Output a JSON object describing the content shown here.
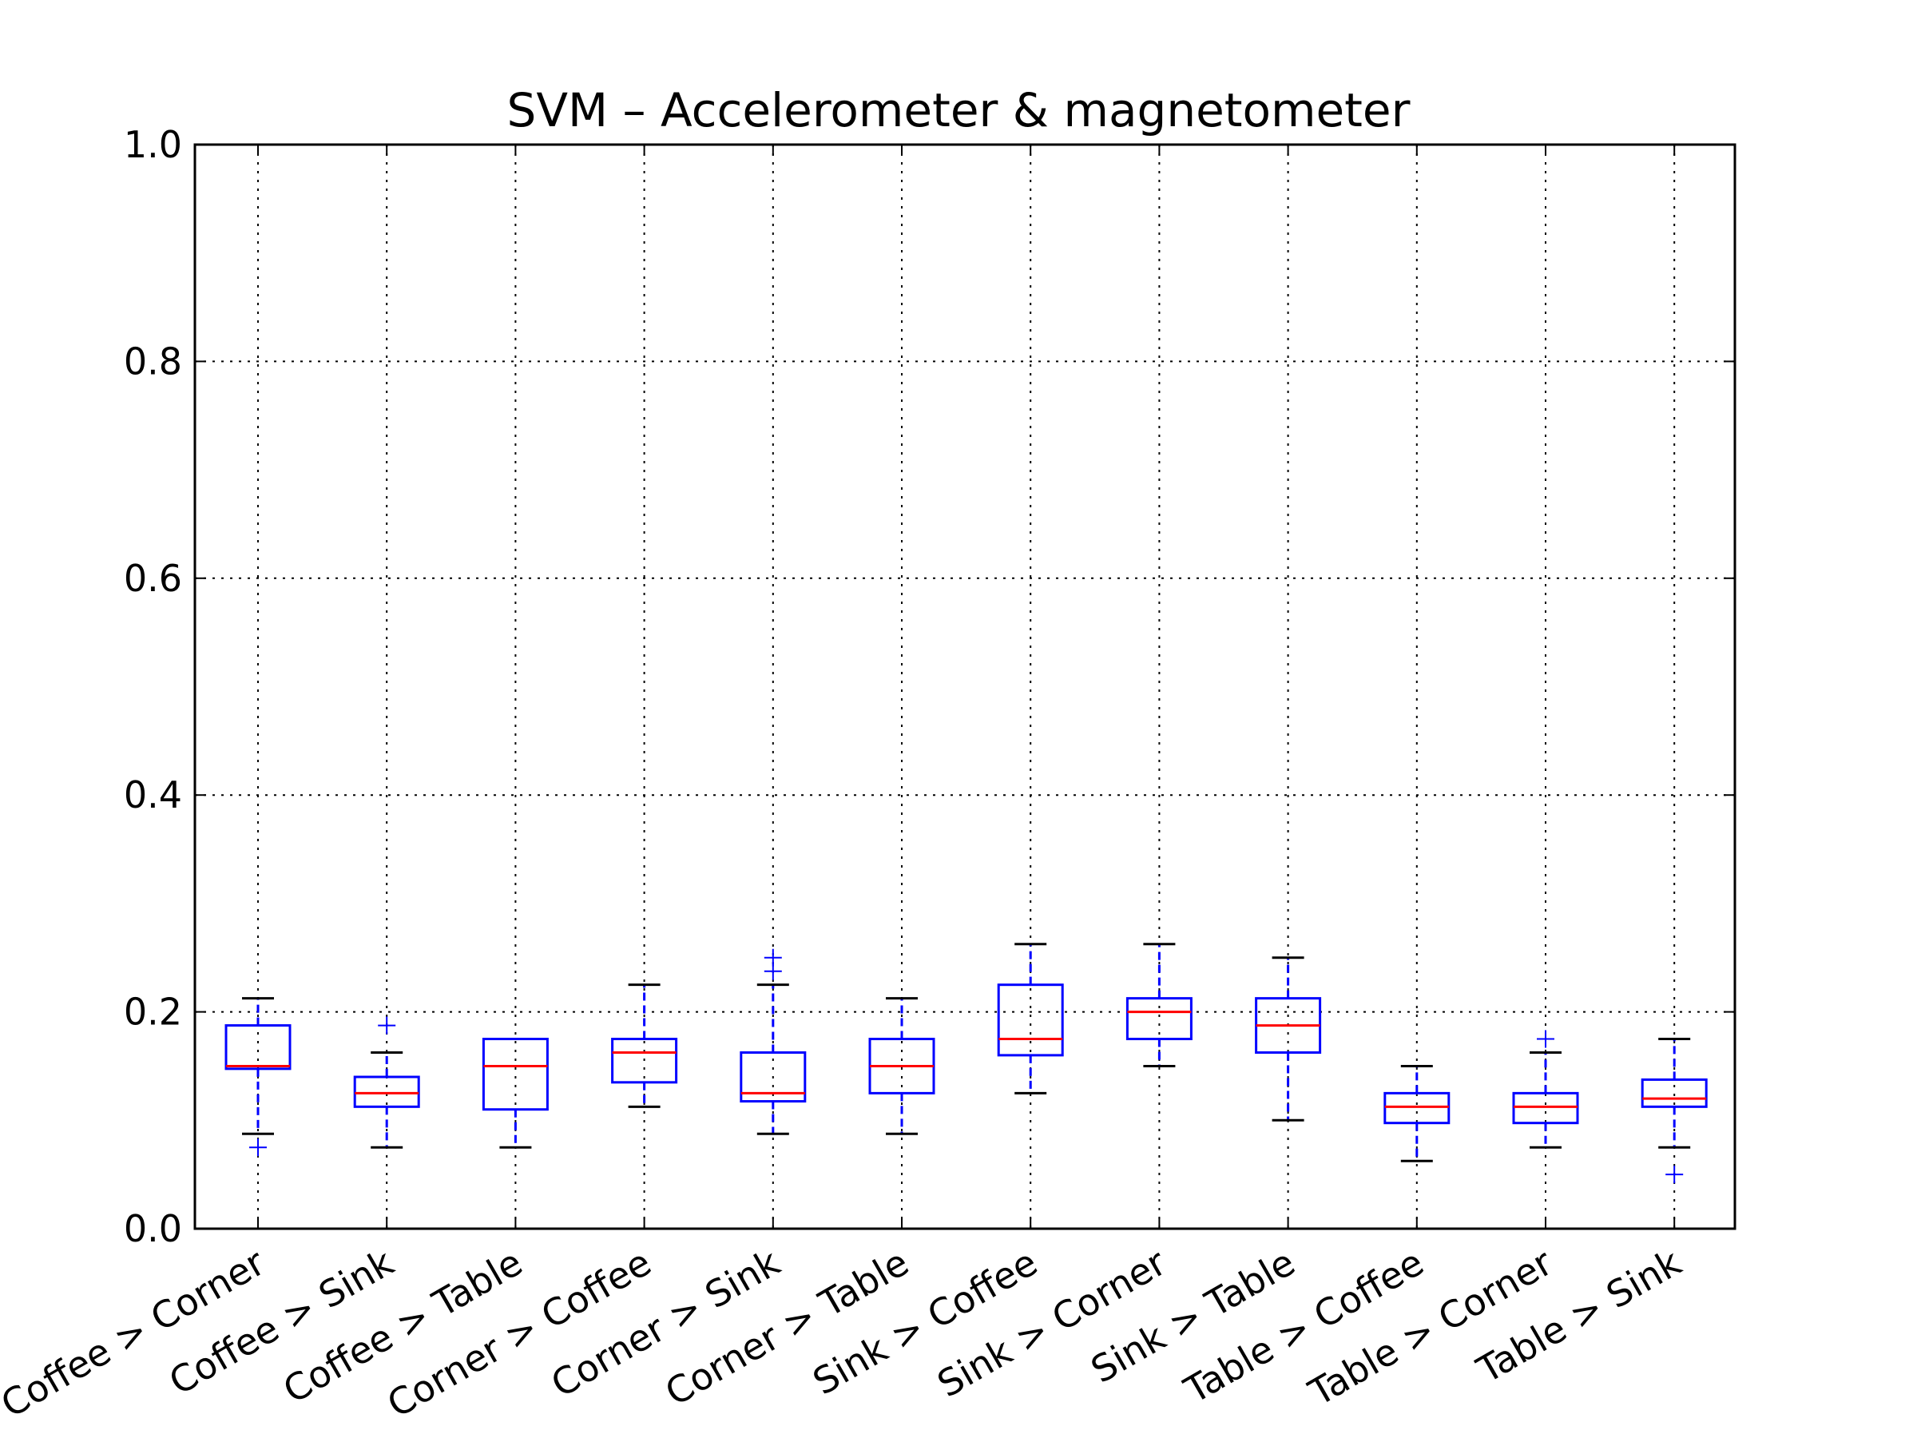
{
  "chart_data": {
    "type": "box",
    "title": "SVM – Accelerometer & magnetometer",
    "xlabel": "",
    "ylabel": "",
    "ylim": [
      0,
      1
    ],
    "yticks": [
      "0.0",
      "0.2",
      "0.4",
      "0.6",
      "0.8",
      "1.0"
    ],
    "grid": true,
    "categories": [
      "Coffee > Corner",
      "Coffee > Sink",
      "Coffee > Table",
      "Corner > Coffee",
      "Corner > Sink",
      "Corner > Table",
      "Sink > Coffee",
      "Sink > Corner",
      "Sink > Table",
      "Table > Coffee",
      "Table > Corner",
      "Table > Sink"
    ],
    "boxes": [
      {
        "whisker_low": 0.0875,
        "q1": 0.1475,
        "median": 0.15,
        "q3": 0.1875,
        "whisker_high": 0.2125,
        "outliers": [
          0.075
        ]
      },
      {
        "whisker_low": 0.075,
        "q1": 0.1125,
        "median": 0.125,
        "q3": 0.14,
        "whisker_high": 0.1625,
        "outliers": [
          0.1875
        ]
      },
      {
        "whisker_low": 0.075,
        "q1": 0.11,
        "median": 0.15,
        "q3": 0.175,
        "whisker_high": 0.175,
        "outliers": []
      },
      {
        "whisker_low": 0.1125,
        "q1": 0.135,
        "median": 0.1625,
        "q3": 0.175,
        "whisker_high": 0.225,
        "outliers": []
      },
      {
        "whisker_low": 0.0875,
        "q1": 0.1175,
        "median": 0.125,
        "q3": 0.1625,
        "whisker_high": 0.225,
        "outliers": [
          0.2375,
          0.25
        ]
      },
      {
        "whisker_low": 0.0875,
        "q1": 0.125,
        "median": 0.15,
        "q3": 0.175,
        "whisker_high": 0.2125,
        "outliers": []
      },
      {
        "whisker_low": 0.125,
        "q1": 0.16,
        "median": 0.175,
        "q3": 0.225,
        "whisker_high": 0.2625,
        "outliers": []
      },
      {
        "whisker_low": 0.15,
        "q1": 0.175,
        "median": 0.2,
        "q3": 0.2125,
        "whisker_high": 0.2625,
        "outliers": []
      },
      {
        "whisker_low": 0.1,
        "q1": 0.1625,
        "median": 0.1875,
        "q3": 0.2125,
        "whisker_high": 0.25,
        "outliers": []
      },
      {
        "whisker_low": 0.0625,
        "q1": 0.0975,
        "median": 0.1125,
        "q3": 0.125,
        "whisker_high": 0.15,
        "outliers": []
      },
      {
        "whisker_low": 0.075,
        "q1": 0.0975,
        "median": 0.1125,
        "q3": 0.125,
        "whisker_high": 0.1625,
        "outliers": [
          0.175
        ]
      },
      {
        "whisker_low": 0.075,
        "q1": 0.1125,
        "median": 0.12,
        "q3": 0.1375,
        "whisker_high": 0.175,
        "outliers": [
          0.05
        ]
      }
    ],
    "colors": {
      "box": "#0000ff",
      "median": "#ff0000",
      "cap": "#000000",
      "grid": "#000000"
    }
  }
}
